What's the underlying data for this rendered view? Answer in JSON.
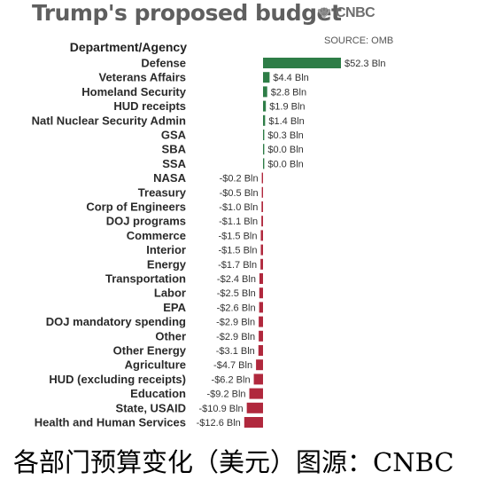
{
  "header": {
    "title": "Trump's proposed budget",
    "logo_text": "CNBC",
    "logo_icon": "peacock-icon",
    "source": "SOURCE: OMB",
    "column_header": "Department/Agency"
  },
  "caption": "各部门预算变化（美元）图源：CNBC",
  "colors": {
    "positive": "#2e7d47",
    "negative": "#b0283d",
    "title": "#5f5f5f"
  },
  "chart_data": {
    "type": "bar",
    "orientation": "horizontal",
    "categories": [
      "Defense",
      "Veterans Affairs",
      "Homeland Security",
      "HUD receipts",
      "Natl Nuclear Security Admin",
      "GSA",
      "SBA",
      "SSA",
      "NASA",
      "Treasury",
      "Corp of Engineers",
      "DOJ programs",
      "Commerce",
      "Interior",
      "Energy",
      "Transportation",
      "Labor",
      "EPA",
      "DOJ mandatory spending",
      "Other",
      "Other Energy",
      "Agriculture",
      "HUD (excluding receipts)",
      "Education",
      "State, USAID",
      "Health and Human Services"
    ],
    "values": [
      52.3,
      4.4,
      2.8,
      1.9,
      1.4,
      0.3,
      0.0,
      0.0,
      -0.2,
      -0.5,
      -1.0,
      -1.1,
      -1.5,
      -1.5,
      -1.7,
      -2.4,
      -2.5,
      -2.6,
      -2.9,
      -2.9,
      -3.1,
      -4.7,
      -6.2,
      -9.2,
      -10.9,
      -12.6
    ],
    "value_labels": [
      "$52.3 Bln",
      "$4.4 Bln",
      "$2.8 Bln",
      "$1.9 Bln",
      "$1.4 Bln",
      "$0.3 Bln",
      "$0.0 Bln",
      "$0.0 Bln",
      "-$0.2 Bln",
      "-$0.5 Bln",
      "-$1.0 Bln",
      "-$1.1 Bln",
      "-$1.5 Bln",
      "-$1.5 Bln",
      "-$1.7 Bln",
      "-$2.4 Bln",
      "-$2.5 Bln",
      "-$2.6 Bln",
      "-$2.9 Bln",
      "-$2.9 Bln",
      "-$3.1 Bln",
      "-$4.7 Bln",
      "-$6.2 Bln",
      "-$9.2 Bln",
      "-$10.9 Bln",
      "-$12.6 Bln"
    ],
    "unit": "Bln",
    "title": "Trump's proposed budget",
    "xlabel": "",
    "ylabel": "Department/Agency",
    "xlim": [
      -12.6,
      52.3
    ],
    "grid": false,
    "legend": "none"
  }
}
